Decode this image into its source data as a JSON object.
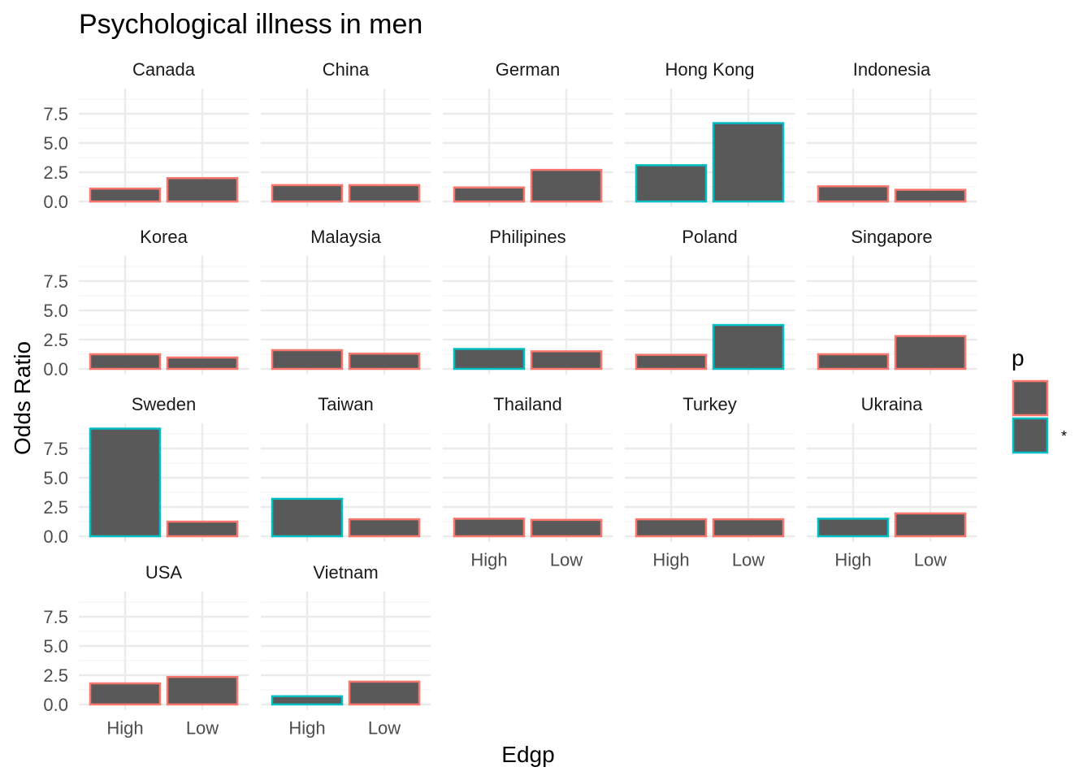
{
  "chart_data": {
    "type": "bar",
    "title": "Psychological illness in men",
    "xlabel": "Edgp",
    "ylabel": "Odds Ratio",
    "categories": [
      "High",
      "Low"
    ],
    "yticks": [
      "0.0",
      "2.5",
      "5.0",
      "7.5"
    ],
    "ytick_values": [
      0,
      2.5,
      5,
      7.5
    ],
    "ylim": [
      -0.46,
      9.66
    ],
    "grid": true,
    "bar_fill": "#595959",
    "legend": {
      "title": "p",
      "position": "right",
      "entries": [
        {
          "label": "",
          "color": "#F8766D"
        },
        {
          "label": "*",
          "color": "#00BFC4"
        }
      ]
    },
    "facets": [
      {
        "name": "Canada",
        "values": [
          1.1,
          2.0
        ],
        "p": [
          "",
          ""
        ]
      },
      {
        "name": "China",
        "values": [
          1.4,
          1.4
        ],
        "p": [
          "",
          ""
        ]
      },
      {
        "name": "German",
        "values": [
          1.2,
          2.7
        ],
        "p": [
          "",
          ""
        ]
      },
      {
        "name": "Hong Kong",
        "values": [
          3.1,
          6.7
        ],
        "p": [
          "*",
          "*"
        ]
      },
      {
        "name": "Indonesia",
        "values": [
          1.3,
          1.0
        ],
        "p": [
          "",
          ""
        ]
      },
      {
        "name": "Korea",
        "values": [
          1.25,
          0.97
        ],
        "p": [
          "",
          ""
        ]
      },
      {
        "name": "Malaysia",
        "values": [
          1.6,
          1.3
        ],
        "p": [
          "",
          ""
        ]
      },
      {
        "name": "Philipines",
        "values": [
          1.7,
          1.5
        ],
        "p": [
          "*",
          ""
        ]
      },
      {
        "name": "Poland",
        "values": [
          1.2,
          3.75
        ],
        "p": [
          "",
          "*"
        ]
      },
      {
        "name": "Singapore",
        "values": [
          1.25,
          2.8
        ],
        "p": [
          "",
          ""
        ]
      },
      {
        "name": "Sweden",
        "values": [
          9.2,
          1.25
        ],
        "p": [
          "*",
          ""
        ]
      },
      {
        "name": "Taiwan",
        "values": [
          3.2,
          1.45
        ],
        "p": [
          "*",
          ""
        ]
      },
      {
        "name": "Thailand",
        "values": [
          1.5,
          1.4
        ],
        "p": [
          "",
          ""
        ]
      },
      {
        "name": "Turkey",
        "values": [
          1.45,
          1.45
        ],
        "p": [
          "",
          ""
        ]
      },
      {
        "name": "Ukraina",
        "values": [
          1.5,
          1.95
        ],
        "p": [
          "*",
          ""
        ]
      },
      {
        "name": "USA",
        "values": [
          1.8,
          2.35
        ],
        "p": [
          "",
          ""
        ]
      },
      {
        "name": "Vietnam",
        "values": [
          0.7,
          1.95
        ],
        "p": [
          "*",
          ""
        ]
      }
    ]
  }
}
